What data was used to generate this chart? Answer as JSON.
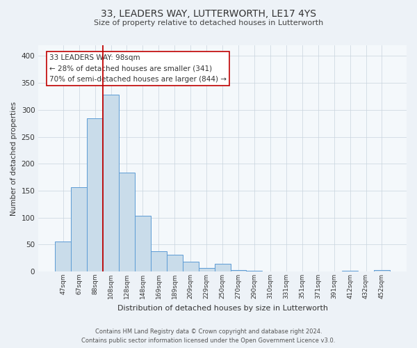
{
  "title1": "33, LEADERS WAY, LUTTERWORTH, LE17 4YS",
  "title2": "Size of property relative to detached houses in Lutterworth",
  "xlabel": "Distribution of detached houses by size in Lutterworth",
  "ylabel": "Number of detached properties",
  "bar_labels": [
    "47sqm",
    "67sqm",
    "88sqm",
    "108sqm",
    "128sqm",
    "148sqm",
    "169sqm",
    "189sqm",
    "209sqm",
    "229sqm",
    "250sqm",
    "270sqm",
    "290sqm",
    "310sqm",
    "331sqm",
    "351sqm",
    "371sqm",
    "391sqm",
    "412sqm",
    "432sqm",
    "452sqm"
  ],
  "bar_values": [
    55,
    157,
    284,
    328,
    184,
    103,
    37,
    31,
    18,
    6,
    14,
    3,
    1,
    0,
    0,
    0,
    0,
    0,
    1,
    0,
    2
  ],
  "bar_color": "#c9dcea",
  "bar_edge_color": "#5b9bd5",
  "ylim": [
    0,
    420
  ],
  "yticks": [
    0,
    50,
    100,
    150,
    200,
    250,
    300,
    350,
    400
  ],
  "vline_color": "#c00000",
  "annotation_text": "33 LEADERS WAY: 98sqm\n← 28% of detached houses are smaller (341)\n70% of semi-detached houses are larger (844) →",
  "annotation_box_edgecolor": "#c00000",
  "annotation_box_facecolor": "#ffffff",
  "footer1": "Contains HM Land Registry data © Crown copyright and database right 2024.",
  "footer2": "Contains public sector information licensed under the Open Government Licence v3.0.",
  "bg_color": "#edf2f7",
  "plot_bg_color": "#f4f8fb"
}
